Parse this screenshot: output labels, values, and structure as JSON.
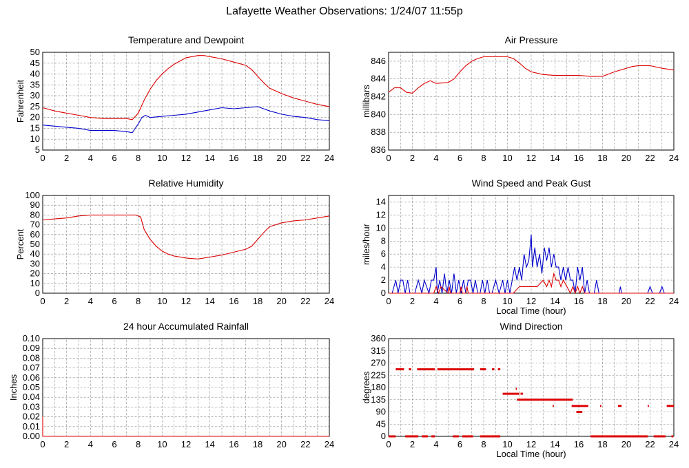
{
  "page": {
    "title": "Lafayette Weather Observations: 1/24/07 11:55p"
  },
  "colors": {
    "red": "#dd0000",
    "blue": "#0000cc",
    "grid": "#777777"
  },
  "chart_data": [
    {
      "id": "temp",
      "type": "line",
      "title": "Temperature and Dewpoint",
      "xlabel": "",
      "ylabel": "Fahrenheit",
      "xlim": [
        0,
        24
      ],
      "ylim": [
        5,
        50
      ],
      "xticks": [
        0,
        2,
        4,
        6,
        8,
        10,
        12,
        14,
        16,
        18,
        20,
        22,
        24
      ],
      "yticks": [
        5,
        10,
        15,
        20,
        25,
        30,
        35,
        40,
        45,
        50
      ],
      "grid": true,
      "series": [
        {
          "color": "#dd0000",
          "x": [
            0,
            1,
            2,
            3,
            4,
            5,
            6,
            7,
            7.5,
            8,
            8.5,
            9,
            9.5,
            10,
            10.5,
            11,
            11.5,
            12,
            12.5,
            13,
            13.5,
            14,
            15,
            16,
            17,
            17.5,
            18,
            18.5,
            19,
            20,
            21,
            22,
            23,
            24
          ],
          "y": [
            24.5,
            23,
            22,
            21,
            20,
            19.5,
            19.5,
            19.5,
            19,
            22,
            28,
            33,
            37,
            40,
            42.5,
            44.5,
            46,
            47.5,
            48,
            48.5,
            48.5,
            48,
            47,
            45.5,
            44,
            42,
            39,
            36,
            33.5,
            31,
            29,
            27.5,
            26,
            25
          ]
        },
        {
          "color": "#0000cc",
          "x": [
            0,
            1,
            2,
            3,
            4,
            5,
            6,
            7,
            7.5,
            8,
            8.3,
            8.6,
            9,
            10,
            11,
            12,
            13,
            14,
            15,
            16,
            17,
            18,
            19,
            20,
            21,
            22,
            23,
            24
          ],
          "y": [
            16.5,
            16,
            15.5,
            15,
            14,
            14,
            14,
            13.5,
            13,
            17,
            20,
            21,
            20,
            20.5,
            21,
            21.5,
            22.5,
            23.5,
            24.5,
            24,
            24.5,
            25,
            23,
            21.5,
            20.5,
            20,
            19,
            18.5
          ]
        }
      ]
    },
    {
      "id": "press",
      "type": "line",
      "title": "Air Pressure",
      "xlabel": "",
      "ylabel": "millibars",
      "xlim": [
        0,
        24
      ],
      "ylim": [
        836,
        847
      ],
      "xticks": [
        0,
        2,
        4,
        6,
        8,
        10,
        12,
        14,
        16,
        18,
        20,
        22,
        24
      ],
      "yticks": [
        836,
        838,
        840,
        842,
        844,
        846
      ],
      "grid": true,
      "series": [
        {
          "color": "#dd0000",
          "x": [
            0,
            0.5,
            1,
            1.5,
            2,
            2.5,
            3,
            3.5,
            4,
            5,
            5.5,
            6,
            6.5,
            7,
            7.5,
            8,
            8.5,
            9,
            10,
            10.5,
            11,
            11.5,
            12,
            13,
            14,
            15,
            16,
            17,
            18,
            19,
            20,
            20.5,
            21,
            22,
            23,
            24
          ],
          "y": [
            842.5,
            843,
            843,
            842.5,
            842.4,
            843,
            843.5,
            843.8,
            843.5,
            843.6,
            844,
            844.8,
            845.5,
            846,
            846.3,
            846.5,
            846.5,
            846.5,
            846.5,
            846.3,
            845.8,
            845.2,
            844.8,
            844.5,
            844.4,
            844.4,
            844.4,
            844.3,
            844.3,
            844.8,
            845.2,
            845.4,
            845.5,
            845.5,
            845.2,
            845
          ]
        }
      ]
    },
    {
      "id": "rh",
      "type": "line",
      "title": "Relative Humidity",
      "xlabel": "",
      "ylabel": "Percent",
      "xlim": [
        0,
        24
      ],
      "ylim": [
        0,
        100
      ],
      "xticks": [
        0,
        2,
        4,
        6,
        8,
        10,
        12,
        14,
        16,
        18,
        20,
        22,
        24
      ],
      "yticks": [
        0,
        10,
        20,
        30,
        40,
        50,
        60,
        70,
        80,
        90,
        100
      ],
      "grid": true,
      "series": [
        {
          "color": "#dd0000",
          "x": [
            0,
            1,
            2,
            3,
            4,
            5,
            6,
            7,
            7.8,
            8.2,
            8.5,
            9,
            9.5,
            10,
            10.5,
            11,
            12,
            13,
            14,
            15,
            16,
            17,
            17.5,
            18,
            18.5,
            19,
            20,
            21,
            22,
            23,
            24
          ],
          "y": [
            75,
            76,
            77,
            79,
            80,
            80,
            80,
            80,
            80,
            78,
            65,
            55,
            48,
            43,
            40,
            38,
            36,
            35,
            37,
            39,
            42,
            45,
            48,
            55,
            62,
            68,
            72,
            74,
            75,
            77,
            79
          ]
        }
      ]
    },
    {
      "id": "wind",
      "type": "line",
      "title": "Wind Speed and Peak Gust",
      "xlabel": "Local Time (hour)",
      "ylabel": "miles/hour",
      "xlim": [
        0,
        24
      ],
      "ylim": [
        0,
        15
      ],
      "xticks": [
        0,
        2,
        4,
        6,
        8,
        10,
        12,
        14,
        16,
        18,
        20,
        22,
        24
      ],
      "yticks": [
        0,
        2,
        4,
        6,
        8,
        10,
        12,
        14
      ],
      "grid": true,
      "series": [
        {
          "color": "#0000cc",
          "x": [
            0,
            0.3,
            0.6,
            0.8,
            1.0,
            1.2,
            1.4,
            1.6,
            1.8,
            2.2,
            2.5,
            2.8,
            3.0,
            3.4,
            3.6,
            3.8,
            4.0,
            4.1,
            4.3,
            4.5,
            4.7,
            4.9,
            5.1,
            5.3,
            5.5,
            5.7,
            5.9,
            6.1,
            6.3,
            6.5,
            6.7,
            6.9,
            7.1,
            7.3,
            7.5,
            7.7,
            7.9,
            8.1,
            8.3,
            8.5,
            8.7,
            9.0,
            9.3,
            9.6,
            9.8,
            10.0,
            10.2,
            10.4,
            10.6,
            10.8,
            11.0,
            11.2,
            11.4,
            11.6,
            11.8,
            12.0,
            12.1,
            12.3,
            12.5,
            12.7,
            12.9,
            13.1,
            13.3,
            13.5,
            13.7,
            13.9,
            14.1,
            14.3,
            14.5,
            14.7,
            14.9,
            15.1,
            15.3,
            15.5,
            15.7,
            15.9,
            16.1,
            16.3,
            16.5,
            16.7,
            16.9,
            17.1,
            17.3,
            17.5,
            17.7,
            17.9,
            18.1,
            18.5,
            19.0,
            19.4,
            19.5,
            19.6,
            19.8,
            20.5,
            21.0,
            21.8,
            22.0,
            22.2,
            22.5,
            22.8,
            23.0,
            23.2,
            23.5,
            24
          ],
          "y": [
            0,
            0,
            2,
            0,
            2,
            2,
            0,
            2,
            0,
            0,
            2,
            0,
            2,
            0,
            2,
            2,
            4,
            0,
            2,
            0,
            3,
            0,
            2,
            0,
            3,
            0,
            2,
            0,
            2,
            0,
            2,
            2,
            0,
            2,
            0,
            0,
            2,
            0,
            2,
            0,
            0,
            2,
            0,
            2,
            0,
            2,
            0,
            2,
            4,
            2,
            4,
            2,
            6,
            4,
            5,
            9,
            4,
            7,
            4,
            6,
            3,
            7,
            5,
            7,
            4,
            6,
            4,
            4,
            2,
            4,
            2,
            4,
            2,
            2,
            0,
            4,
            2,
            4,
            0,
            2,
            0,
            0,
            0,
            2,
            0,
            0,
            0,
            0,
            0,
            0,
            1,
            0,
            0,
            0,
            0,
            0,
            1,
            0,
            0,
            0,
            1,
            0,
            0,
            0
          ]
        },
        {
          "color": "#dd0000",
          "x": [
            0,
            3.8,
            4.0,
            4.2,
            4.4,
            5.0,
            5.1,
            5.2,
            6.0,
            6.1,
            6.2,
            6.5,
            6.6,
            6.7,
            8.0,
            10.5,
            11.0,
            11.5,
            12.0,
            12.5,
            13.0,
            13.3,
            13.5,
            13.7,
            13.9,
            14.1,
            14.3,
            14.5,
            14.7,
            15.0,
            15.3,
            15.5,
            15.7,
            15.9,
            16.1,
            16.3,
            16.5,
            16.7,
            17.0,
            24
          ],
          "y": [
            0,
            0,
            1,
            0,
            1,
            0,
            1,
            0,
            0,
            1,
            0,
            0,
            1,
            0,
            0,
            0,
            1,
            1,
            1,
            1,
            2,
            1,
            2,
            1,
            3,
            2,
            2,
            1,
            2,
            1,
            0,
            1,
            0,
            1,
            0,
            1,
            0,
            0,
            0,
            0
          ]
        }
      ]
    },
    {
      "id": "rain",
      "type": "line",
      "title": "24 hour Accumulated Rainfall",
      "xlabel": "",
      "ylabel": "Inches",
      "xlim": [
        0,
        24
      ],
      "ylim": [
        0,
        0.1
      ],
      "xticks": [
        0,
        2,
        4,
        6,
        8,
        10,
        12,
        14,
        16,
        18,
        20,
        22,
        24
      ],
      "yticks": [
        0,
        0.01,
        0.02,
        0.03,
        0.04,
        0.05,
        0.06,
        0.07,
        0.08,
        0.09,
        0.1
      ],
      "ytick_labels": [
        "0.00",
        "0.01",
        "0.02",
        "0.03",
        "0.04",
        "0.05",
        "0.06",
        "0.07",
        "0.08",
        "0.09",
        "0.10"
      ],
      "grid": true,
      "series": [
        {
          "color": "#dd0000",
          "x": [
            0,
            0,
            24
          ],
          "y": [
            0.02,
            0,
            0
          ]
        }
      ]
    },
    {
      "id": "dir",
      "type": "scatter",
      "title": "Wind Direction",
      "xlabel": "Local Time (hour)",
      "ylabel": "degrees",
      "xlim": [
        0,
        24
      ],
      "ylim": [
        0,
        360
      ],
      "xticks": [
        0,
        2,
        4,
        6,
        8,
        10,
        12,
        14,
        16,
        18,
        20,
        22,
        24
      ],
      "yticks": [
        0,
        45,
        90,
        135,
        180,
        225,
        270,
        315,
        360
      ],
      "grid": true,
      "segments": [
        {
          "x0": 0.0,
          "x1": 0.6,
          "y": 0
        },
        {
          "x0": 0.6,
          "x1": 1.3,
          "y": 247
        },
        {
          "x0": 1.4,
          "x1": 2.5,
          "y": 0
        },
        {
          "x0": 1.7,
          "x1": 1.9,
          "y": 247
        },
        {
          "x0": 2.4,
          "x1": 3.9,
          "y": 247
        },
        {
          "x0": 2.8,
          "x1": 3.3,
          "y": 0
        },
        {
          "x0": 3.6,
          "x1": 3.9,
          "y": 0
        },
        {
          "x0": 4.1,
          "x1": 7.2,
          "y": 247
        },
        {
          "x0": 5.4,
          "x1": 5.9,
          "y": 0
        },
        {
          "x0": 6.2,
          "x1": 7.1,
          "y": 0
        },
        {
          "x0": 7.7,
          "x1": 8.2,
          "y": 247
        },
        {
          "x0": 7.7,
          "x1": 9.4,
          "y": 0
        },
        {
          "x0": 8.7,
          "x1": 8.9,
          "y": 247
        },
        {
          "x0": 9.2,
          "x1": 9.4,
          "y": 247
        },
        {
          "x0": 9.6,
          "x1": 11.0,
          "y": 157
        },
        {
          "x0": 10.7,
          "x1": 10.8,
          "y": 175
        },
        {
          "x0": 11.1,
          "x1": 11.3,
          "y": 157
        },
        {
          "x0": 10.8,
          "x1": 15.5,
          "y": 135
        },
        {
          "x0": 13.8,
          "x1": 13.9,
          "y": 112
        },
        {
          "x0": 15.4,
          "x1": 16.8,
          "y": 112
        },
        {
          "x0": 15.8,
          "x1": 16.3,
          "y": 90
        },
        {
          "x0": 17.0,
          "x1": 21.8,
          "y": 0
        },
        {
          "x0": 17.8,
          "x1": 17.9,
          "y": 112
        },
        {
          "x0": 19.3,
          "x1": 19.6,
          "y": 112
        },
        {
          "x0": 21.8,
          "x1": 21.9,
          "y": 112
        },
        {
          "x0": 22.3,
          "x1": 23.3,
          "y": 0
        },
        {
          "x0": 23.4,
          "x1": 24.0,
          "y": 112
        },
        {
          "x0": 23.8,
          "x1": 23.95,
          "y": 0
        }
      ]
    }
  ]
}
